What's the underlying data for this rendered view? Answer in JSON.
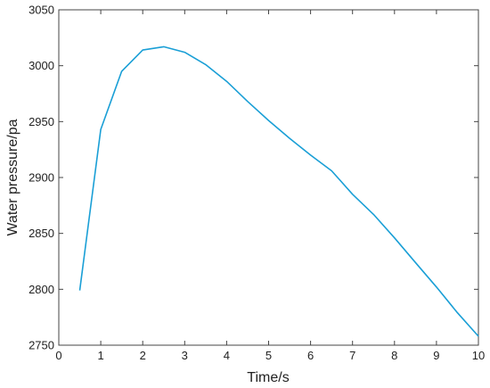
{
  "chart_data": {
    "type": "line",
    "title": "",
    "xlabel": "Time/s",
    "ylabel": "Water pressure/pa",
    "xlim": [
      0,
      10
    ],
    "ylim": [
      2750,
      3050
    ],
    "xticks": [
      "0",
      "1",
      "2",
      "3",
      "4",
      "5",
      "6",
      "7",
      "8",
      "9",
      "10"
    ],
    "yticks": [
      "2750",
      "2800",
      "2850",
      "2900",
      "2950",
      "3000",
      "3050"
    ],
    "grid": false,
    "legend": "none",
    "line_color": "#1a9fd6",
    "series": [
      {
        "x": [
          0.5,
          1.0,
          1.5,
          2.0,
          2.5,
          3.0,
          3.5,
          4.0,
          4.5,
          5.0,
          5.5,
          6.0,
          6.5,
          7.0,
          7.5,
          8.0,
          8.5,
          9.0,
          9.5,
          10.0
        ],
        "values": [
          2799,
          2943,
          2995,
          3014,
          3017,
          3012,
          3001,
          2986,
          2968,
          2951,
          2935,
          2920,
          2906,
          2885,
          2867,
          2846,
          2824,
          2802,
          2779,
          2758
        ]
      }
    ]
  }
}
